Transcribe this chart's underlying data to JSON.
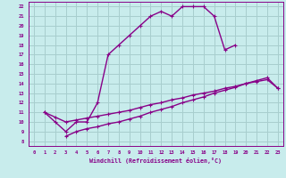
{
  "xlabel": "Windchill (Refroidissement éolien,°C)",
  "bg_color": "#c8ecec",
  "grid_color": "#a8cece",
  "line_color": "#880088",
  "xlim": [
    -0.5,
    23.5
  ],
  "ylim": [
    7.5,
    22.5
  ],
  "xticks": [
    0,
    1,
    2,
    3,
    4,
    5,
    6,
    7,
    8,
    9,
    10,
    11,
    12,
    13,
    14,
    15,
    16,
    17,
    18,
    19,
    20,
    21,
    22,
    23
  ],
  "yticks": [
    8,
    9,
    10,
    11,
    12,
    13,
    14,
    15,
    16,
    17,
    18,
    19,
    20,
    21,
    22
  ],
  "line1_x": [
    1,
    2,
    3,
    4,
    5,
    6,
    7,
    8,
    9,
    10,
    11,
    12,
    13,
    14,
    15,
    16,
    17,
    18,
    19
  ],
  "line1_y": [
    11,
    10,
    9,
    10,
    10,
    12,
    17,
    18,
    19,
    20,
    21,
    21.5,
    21,
    22,
    22,
    22,
    21,
    17.5,
    18
  ],
  "line2_x": [
    1,
    2,
    3,
    4,
    5,
    6,
    7,
    8,
    9,
    10,
    11,
    12,
    13,
    14,
    15,
    16,
    17,
    18,
    19,
    20,
    21,
    22,
    23
  ],
  "line2_y": [
    11,
    10.5,
    10,
    10.2,
    10.4,
    10.6,
    10.8,
    11,
    11.2,
    11.5,
    11.8,
    12.0,
    12.3,
    12.5,
    12.8,
    13.0,
    13.2,
    13.5,
    13.7,
    14.0,
    14.2,
    14.4,
    13.5
  ],
  "line3_x": [
    3,
    4,
    5,
    6,
    7,
    8,
    9,
    10,
    11,
    12,
    13,
    14,
    15,
    16,
    17,
    18,
    19,
    20,
    21,
    22,
    23
  ],
  "line3_y": [
    8.5,
    9,
    9.3,
    9.5,
    9.8,
    10.0,
    10.3,
    10.6,
    11.0,
    11.3,
    11.6,
    12.0,
    12.3,
    12.6,
    13.0,
    13.3,
    13.6,
    14.0,
    14.3,
    14.6,
    13.5
  ],
  "marker": "+"
}
